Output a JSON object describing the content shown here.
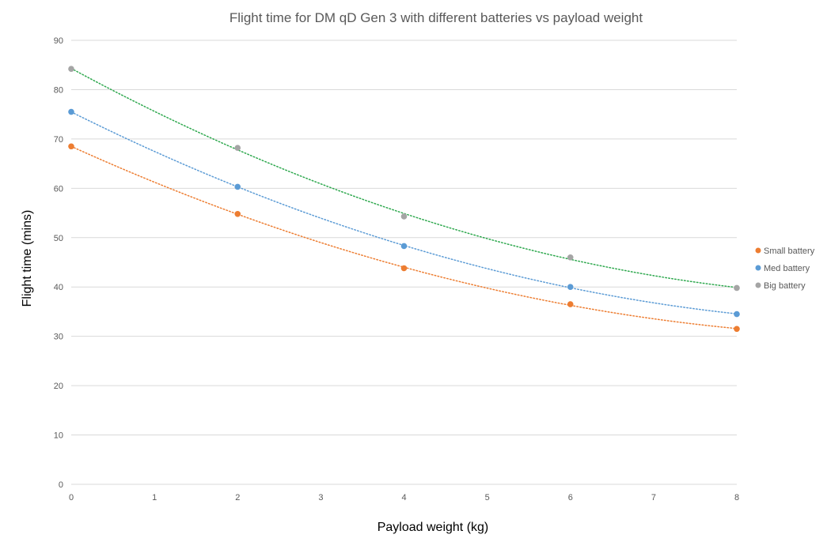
{
  "chart_data": {
    "type": "scatter",
    "title": "Flight time for DM qD Gen 3 with different batteries vs payload weight",
    "xlabel": "Payload weight (kg)",
    "ylabel": "Flight time (mins)",
    "xlim": [
      0,
      8
    ],
    "ylim": [
      0,
      90
    ],
    "xticks": [
      0,
      1,
      2,
      3,
      4,
      5,
      6,
      7,
      8
    ],
    "yticks": [
      0,
      10,
      20,
      30,
      40,
      50,
      60,
      70,
      80,
      90
    ],
    "grid": true,
    "legend_position": "right",
    "series": [
      {
        "name": "Small battery",
        "color": "#ED7D31",
        "trendline_color": "#ED7D31",
        "x": [
          0,
          2,
          4,
          6,
          8
        ],
        "y": [
          68.5,
          54.8,
          43.8,
          36.5,
          31.5
        ]
      },
      {
        "name": "Med battery",
        "color": "#5B9BD5",
        "trendline_color": "#5B9BD5",
        "x": [
          0,
          2,
          4,
          6,
          8
        ],
        "y": [
          75.5,
          60.3,
          48.3,
          40.0,
          34.5
        ]
      },
      {
        "name": "Big battery",
        "color": "#A5A5A5",
        "trendline_color": "#2EA84E",
        "x": [
          0,
          2,
          4,
          6,
          8
        ],
        "y": [
          84.2,
          68.2,
          54.3,
          46.0,
          39.8
        ]
      }
    ]
  }
}
